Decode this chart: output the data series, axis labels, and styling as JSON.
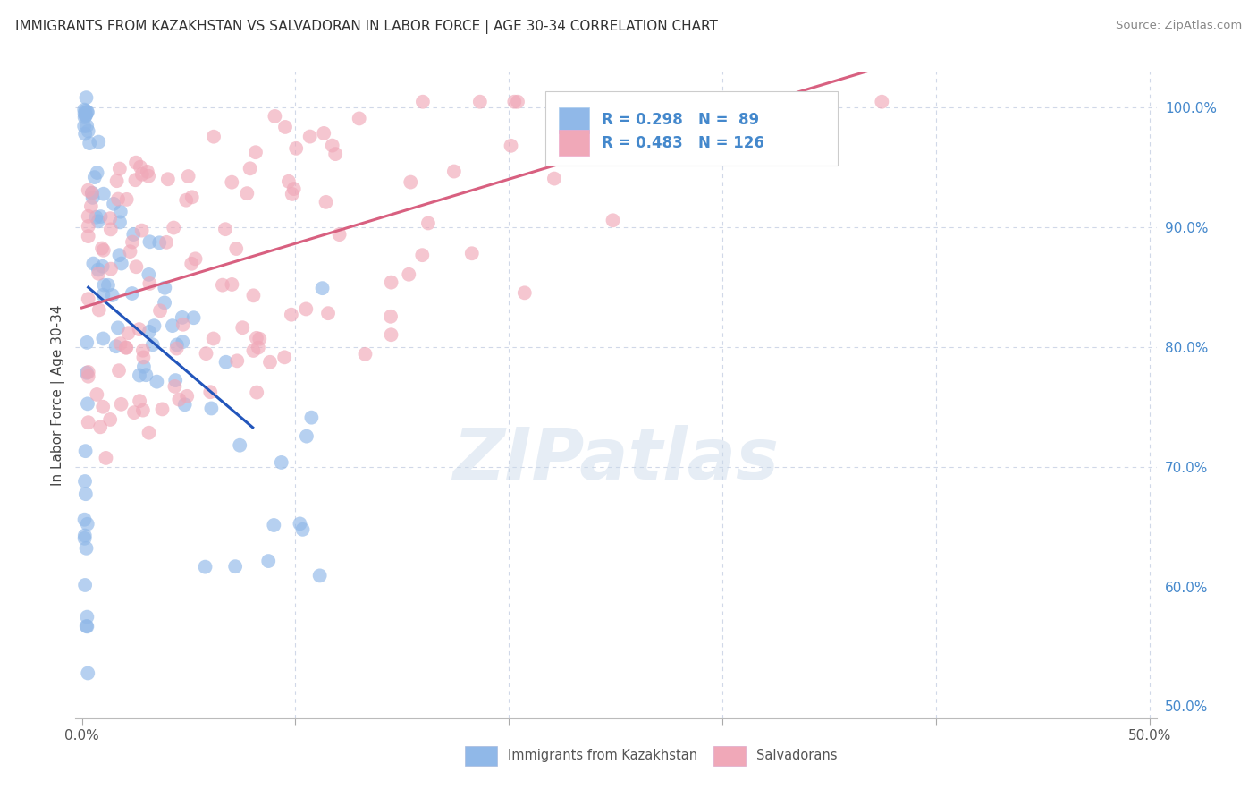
{
  "title": "IMMIGRANTS FROM KAZAKHSTAN VS SALVADORAN IN LABOR FORCE | AGE 30-34 CORRELATION CHART",
  "source": "Source: ZipAtlas.com",
  "ylabel": "In Labor Force | Age 30-34",
  "xlim": [
    -0.003,
    0.503
  ],
  "ylim": [
    0.49,
    1.03
  ],
  "yticks": [
    0.5,
    0.6,
    0.7,
    0.8,
    0.9,
    1.0
  ],
  "yticklabels": [
    "50.0%",
    "60.0%",
    "70.0%",
    "80.0%",
    "90.0%",
    "100.0%"
  ],
  "xticks": [
    0.0,
    0.1,
    0.2,
    0.3,
    0.4,
    0.5
  ],
  "xticklabels": [
    "0.0%",
    "",
    "",
    "",
    "",
    "50.0%"
  ],
  "watermark": "ZIPatlas",
  "kazakhstan_color": "#90b8e8",
  "salvadoran_color": "#f0a8b8",
  "kazakhstan_line_color": "#2255bb",
  "salvadoran_line_color": "#d86080",
  "background_color": "#ffffff",
  "grid_color": "#d0d8e8",
  "legend_kaz_label": "R = 0.298   N =  89",
  "legend_sal_label": "R = 0.483   N = 126",
  "legend_text_color": "#4488cc",
  "bottom_label_kaz": "Immigrants from Kazakhstan",
  "bottom_label_sal": "Salvadorans"
}
